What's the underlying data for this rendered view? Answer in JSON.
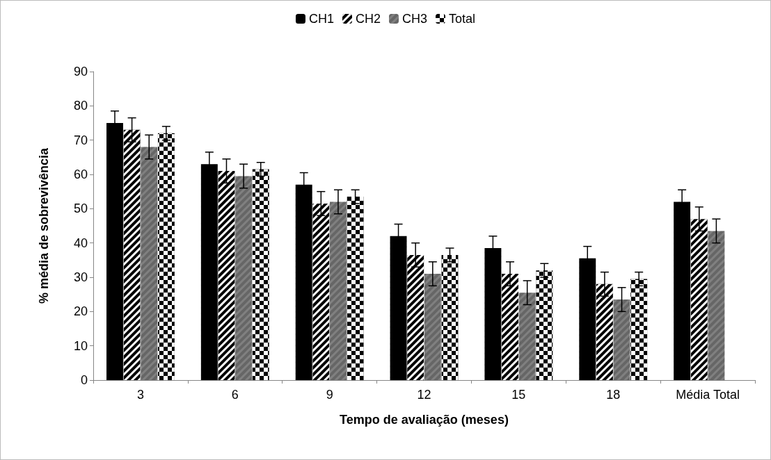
{
  "chart_data": {
    "type": "bar",
    "xlabel": "Tempo de avaliação (meses)",
    "ylabel": "% média de sobrevivência",
    "categories": [
      "3",
      "6",
      "9",
      "12",
      "15",
      "18",
      "Média Total"
    ],
    "ylim": [
      0,
      90
    ],
    "yticks": [
      0,
      10,
      20,
      30,
      40,
      50,
      60,
      70,
      80,
      90
    ],
    "grid": false,
    "legend": "top",
    "series": [
      {
        "name": "CH1",
        "color": "#000000",
        "values": [
          75,
          63,
          57,
          42,
          38.5,
          35.5,
          52
        ],
        "errors": [
          3.5,
          3.5,
          3.5,
          3.5,
          3.5,
          3.5,
          3.5
        ]
      },
      {
        "name": "CH2",
        "color": "#000000",
        "values": [
          73,
          61,
          51.5,
          36.5,
          31,
          28,
          47
        ],
        "errors": [
          3.5,
          3.5,
          3.5,
          3.5,
          3.5,
          3.5,
          3.5
        ]
      },
      {
        "name": "CH3",
        "color": "#808080",
        "values": [
          68,
          59.5,
          52,
          31,
          25.5,
          23.5,
          43.5
        ],
        "errors": [
          3.5,
          3.5,
          3.5,
          3.5,
          3.5,
          3.5,
          3.5
        ]
      },
      {
        "name": "Total",
        "color": "#000000",
        "values": [
          72,
          61.5,
          53.5,
          36.5,
          32,
          29.5,
          null
        ],
        "errors": [
          2,
          2,
          2,
          2,
          2,
          2,
          null
        ]
      }
    ]
  }
}
